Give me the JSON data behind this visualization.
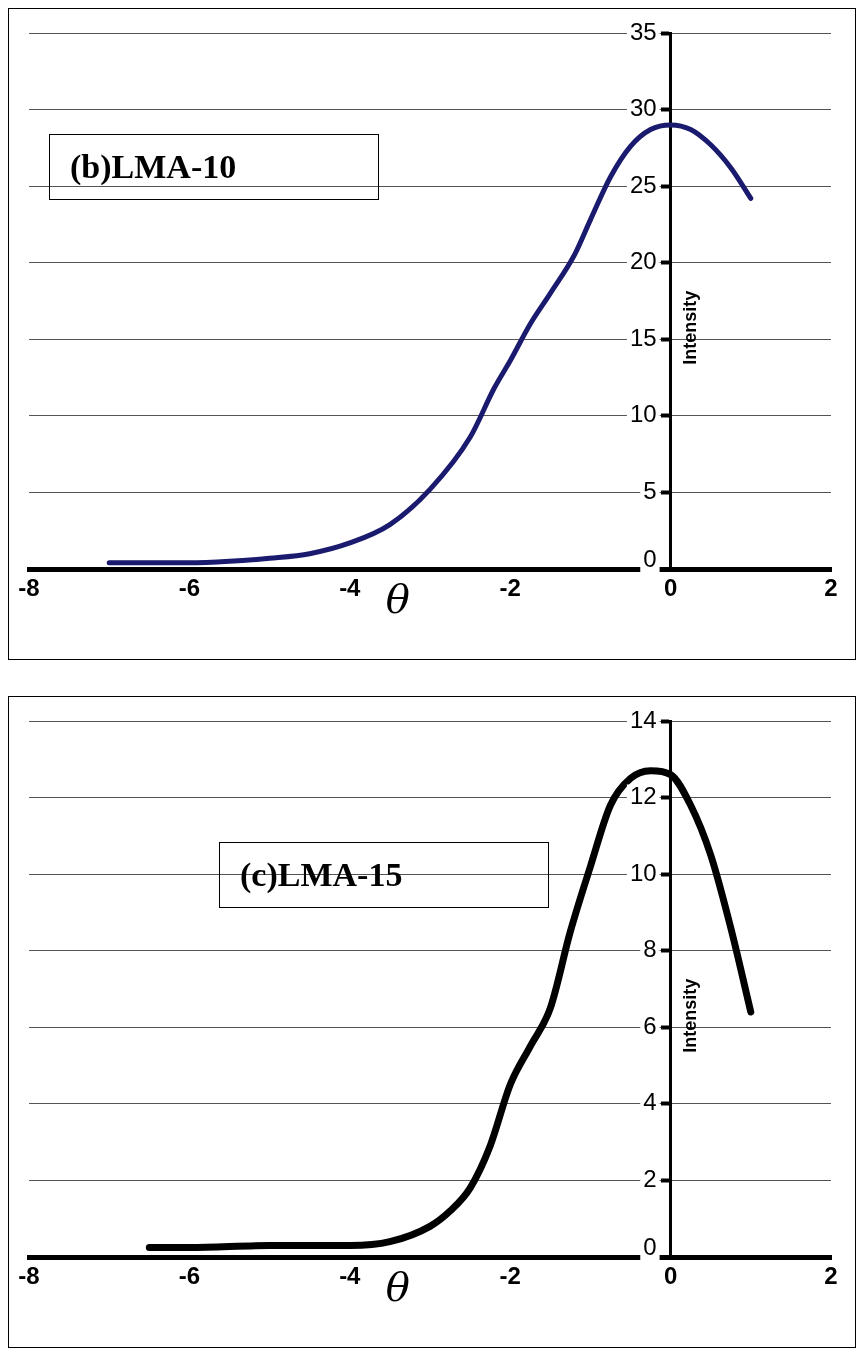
{
  "chart_data": [
    {
      "type": "line",
      "xlabel": "θ",
      "ylabel": "Intensity",
      "annotations": [
        "(b)LMA-10"
      ],
      "xlim": [
        -8,
        2
      ],
      "xticks": [
        -8,
        -6,
        -4,
        -2,
        0,
        2
      ],
      "ylim": [
        0,
        35
      ],
      "yticks": [
        0,
        5,
        10,
        15,
        20,
        25,
        30,
        35
      ],
      "grid": "y",
      "marker": "none",
      "line_style": "solid",
      "series": [
        {
          "color": "#1a1a6e",
          "x": [
            -7,
            -6.5,
            -6,
            -5.5,
            -5,
            -4.5,
            -4,
            -3.5,
            -3,
            -2.5,
            -2.2,
            -2,
            -1.75,
            -1.5,
            -1.2,
            -1,
            -0.75,
            -0.5,
            -0.25,
            0,
            0.25,
            0.5,
            0.75,
            1
          ],
          "values": [
            0.4,
            0.4,
            0.4,
            0.5,
            0.7,
            1,
            1.7,
            2.9,
            5.2,
            8.6,
            11.8,
            13.6,
            16,
            18,
            20.5,
            22.8,
            25.6,
            27.6,
            28.7,
            29,
            28.7,
            27.7,
            26.2,
            24.2
          ]
        }
      ]
    },
    {
      "type": "line",
      "xlabel": "θ",
      "ylabel": "Intensity",
      "annotations": [
        "(c)LMA-15"
      ],
      "xlim": [
        -8,
        2
      ],
      "xticks": [
        -8,
        -6,
        -4,
        -2,
        0,
        2
      ],
      "ylim": [
        0,
        14
      ],
      "yticks": [
        0,
        2,
        4,
        6,
        8,
        10,
        12,
        14
      ],
      "grid": "y",
      "marker": "none",
      "line_style": "solid",
      "series": [
        {
          "color": "#000000",
          "x": [
            -6.5,
            -6,
            -5,
            -4.5,
            -4,
            -3.5,
            -3,
            -2.75,
            -2.5,
            -2.25,
            -2,
            -1.75,
            -1.5,
            -1.25,
            -1,
            -0.75,
            -0.5,
            -0.25,
            0,
            0.25,
            0.5,
            0.75,
            1
          ],
          "values": [
            0.25,
            0.25,
            0.3,
            0.3,
            0.3,
            0.4,
            0.8,
            1.2,
            1.8,
            2.9,
            4.5,
            5.5,
            6.5,
            8.5,
            10.2,
            11.8,
            12.5,
            12.7,
            12.6,
            11.8,
            10.5,
            8.6,
            6.4
          ]
        }
      ]
    }
  ]
}
